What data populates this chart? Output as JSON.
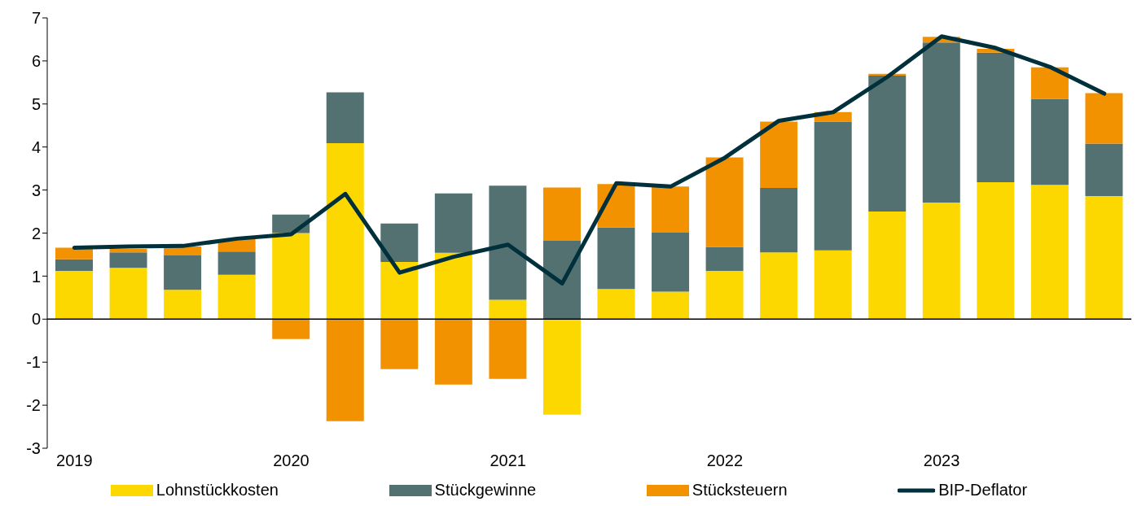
{
  "chart_data": {
    "type": "bar",
    "stacked": true,
    "categories": [
      "2019",
      null,
      null,
      null,
      "2020",
      null,
      null,
      null,
      "2021",
      null,
      null,
      null,
      "2022",
      null,
      null,
      null,
      "2023",
      null,
      null,
      null
    ],
    "series": [
      {
        "name": "Lohnstückkosten",
        "color": "#fdd800",
        "values": [
          1.12,
          1.19,
          0.68,
          1.03,
          2.0,
          4.09,
          1.33,
          1.54,
          0.45,
          -2.22,
          0.7,
          0.64,
          1.12,
          1.55,
          1.6,
          2.5,
          2.71,
          3.18,
          3.12,
          2.86
        ]
      },
      {
        "name": "Stückgewinne",
        "color": "#537171",
        "values": [
          0.27,
          0.36,
          0.8,
          0.54,
          0.43,
          1.18,
          0.89,
          1.38,
          2.65,
          1.82,
          1.43,
          1.37,
          0.56,
          1.5,
          2.99,
          3.16,
          3.72,
          3.01,
          2.0,
          1.22
        ]
      },
      {
        "name": "Stücksteuern",
        "color": "#f39200",
        "values": [
          0.27,
          0.08,
          0.21,
          0.29,
          -0.46,
          -2.37,
          -1.16,
          -1.52,
          -1.39,
          1.24,
          1.01,
          1.07,
          2.08,
          1.54,
          0.22,
          0.04,
          0.13,
          0.09,
          0.73,
          1.17
        ]
      },
      {
        "name": "BIP-Deflator",
        "type": "line",
        "color": "#00303c",
        "values": [
          1.66,
          1.69,
          1.7,
          1.87,
          1.97,
          2.91,
          1.08,
          1.45,
          1.73,
          0.83,
          3.16,
          3.08,
          3.75,
          4.61,
          4.81,
          5.63,
          6.57,
          6.3,
          5.86,
          5.24
        ]
      }
    ],
    "ylim": [
      -3,
      7
    ],
    "yticks": [
      -3,
      -2,
      -1,
      0,
      1,
      2,
      3,
      4,
      5,
      6,
      7
    ],
    "legend": "bottom",
    "marker": "none",
    "line_style": "solid"
  }
}
